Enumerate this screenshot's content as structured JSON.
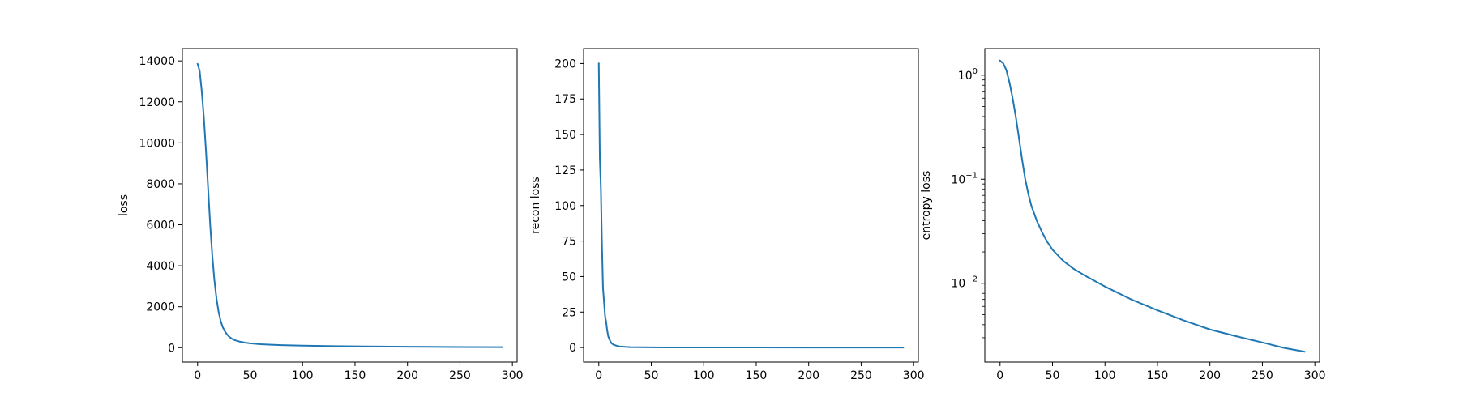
{
  "chart_data": [
    {
      "type": "line",
      "title": "",
      "xlabel": "",
      "ylabel": "loss",
      "xlim": [
        -14.5,
        304.5
      ],
      "ylim": [
        -700,
        14600
      ],
      "yscale": "linear",
      "xticks": [
        0,
        50,
        100,
        150,
        200,
        250,
        300
      ],
      "xtick_labels": [
        "0",
        "50",
        "100",
        "150",
        "200",
        "250",
        "300"
      ],
      "yticks": [
        0,
        2000,
        4000,
        6000,
        8000,
        10000,
        12000,
        14000
      ],
      "ytick_labels": [
        "0",
        "2000",
        "4000",
        "6000",
        "8000",
        "10000",
        "12000",
        "14000"
      ],
      "grid": false,
      "series": [
        {
          "color": "#1f77b4",
          "x": [
            0,
            2,
            4,
            6,
            8,
            10,
            12,
            14,
            16,
            18,
            20,
            22,
            24,
            26,
            28,
            30,
            33,
            36,
            40,
            45,
            50,
            60,
            70,
            80,
            100,
            130,
            160,
            200,
            250,
            290
          ],
          "y": [
            13850,
            13500,
            12500,
            11200,
            9600,
            7800,
            6000,
            4500,
            3300,
            2400,
            1750,
            1300,
            1000,
            800,
            650,
            540,
            430,
            360,
            300,
            250,
            215,
            170,
            145,
            125,
            100,
            75,
            60,
            45,
            32,
            25
          ]
        }
      ]
    },
    {
      "type": "line",
      "title": "",
      "xlabel": "",
      "ylabel": "recon loss",
      "xlim": [
        -14.5,
        304.5
      ],
      "ylim": [
        -10.2,
        210.5
      ],
      "yscale": "linear",
      "xticks": [
        0,
        50,
        100,
        150,
        200,
        250,
        300
      ],
      "xtick_labels": [
        "0",
        "50",
        "100",
        "150",
        "200",
        "250",
        "300"
      ],
      "yticks": [
        0,
        25,
        50,
        75,
        100,
        125,
        150,
        175,
        200
      ],
      "ytick_labels": [
        "0",
        "25",
        "50",
        "75",
        "100",
        "125",
        "150",
        "175",
        "200"
      ],
      "grid": false,
      "series": [
        {
          "color": "#1f77b4",
          "x": [
            0,
            1,
            2,
            3,
            4,
            5,
            6,
            7,
            8,
            9,
            10,
            12,
            14,
            16,
            18,
            20,
            25,
            30,
            40,
            60,
            100,
            150,
            200,
            250,
            290
          ],
          "y": [
            200,
            133,
            112,
            72,
            42,
            32,
            22,
            18,
            12,
            8,
            6,
            3,
            2,
            1.5,
            1,
            0.8,
            0.5,
            0.3,
            0.2,
            0.1,
            0.05,
            0.03,
            0.02,
            0.02,
            0.01
          ]
        }
      ]
    },
    {
      "type": "line",
      "title": "",
      "xlabel": "",
      "ylabel": "entropy loss",
      "xlim": [
        -14.5,
        304.5
      ],
      "ylim": [
        0.00175,
        1.8
      ],
      "yscale": "log",
      "xticks": [
        0,
        50,
        100,
        150,
        200,
        250,
        300
      ],
      "xtick_labels": [
        "0",
        "50",
        "100",
        "150",
        "200",
        "250",
        "300"
      ],
      "yticks": [
        1,
        0.1,
        0.01
      ],
      "ytick_labels": [
        {
          "base": "10",
          "exp": "0"
        },
        {
          "base": "10",
          "exp": "−1"
        },
        {
          "base": "10",
          "exp": "−2"
        }
      ],
      "grid": false,
      "series": [
        {
          "color": "#1f77b4",
          "x": [
            0,
            3,
            6,
            9,
            12,
            15,
            18,
            21,
            24,
            27,
            30,
            35,
            40,
            45,
            50,
            60,
            70,
            80,
            100,
            125,
            150,
            175,
            200,
            225,
            250,
            270,
            290
          ],
          "y": [
            1.38,
            1.3,
            1.12,
            0.85,
            0.6,
            0.4,
            0.25,
            0.155,
            0.1,
            0.072,
            0.055,
            0.04,
            0.031,
            0.025,
            0.021,
            0.0165,
            0.0138,
            0.012,
            0.0093,
            0.007,
            0.0055,
            0.0044,
            0.0036,
            0.0031,
            0.0027,
            0.0024,
            0.0022
          ]
        }
      ]
    }
  ]
}
